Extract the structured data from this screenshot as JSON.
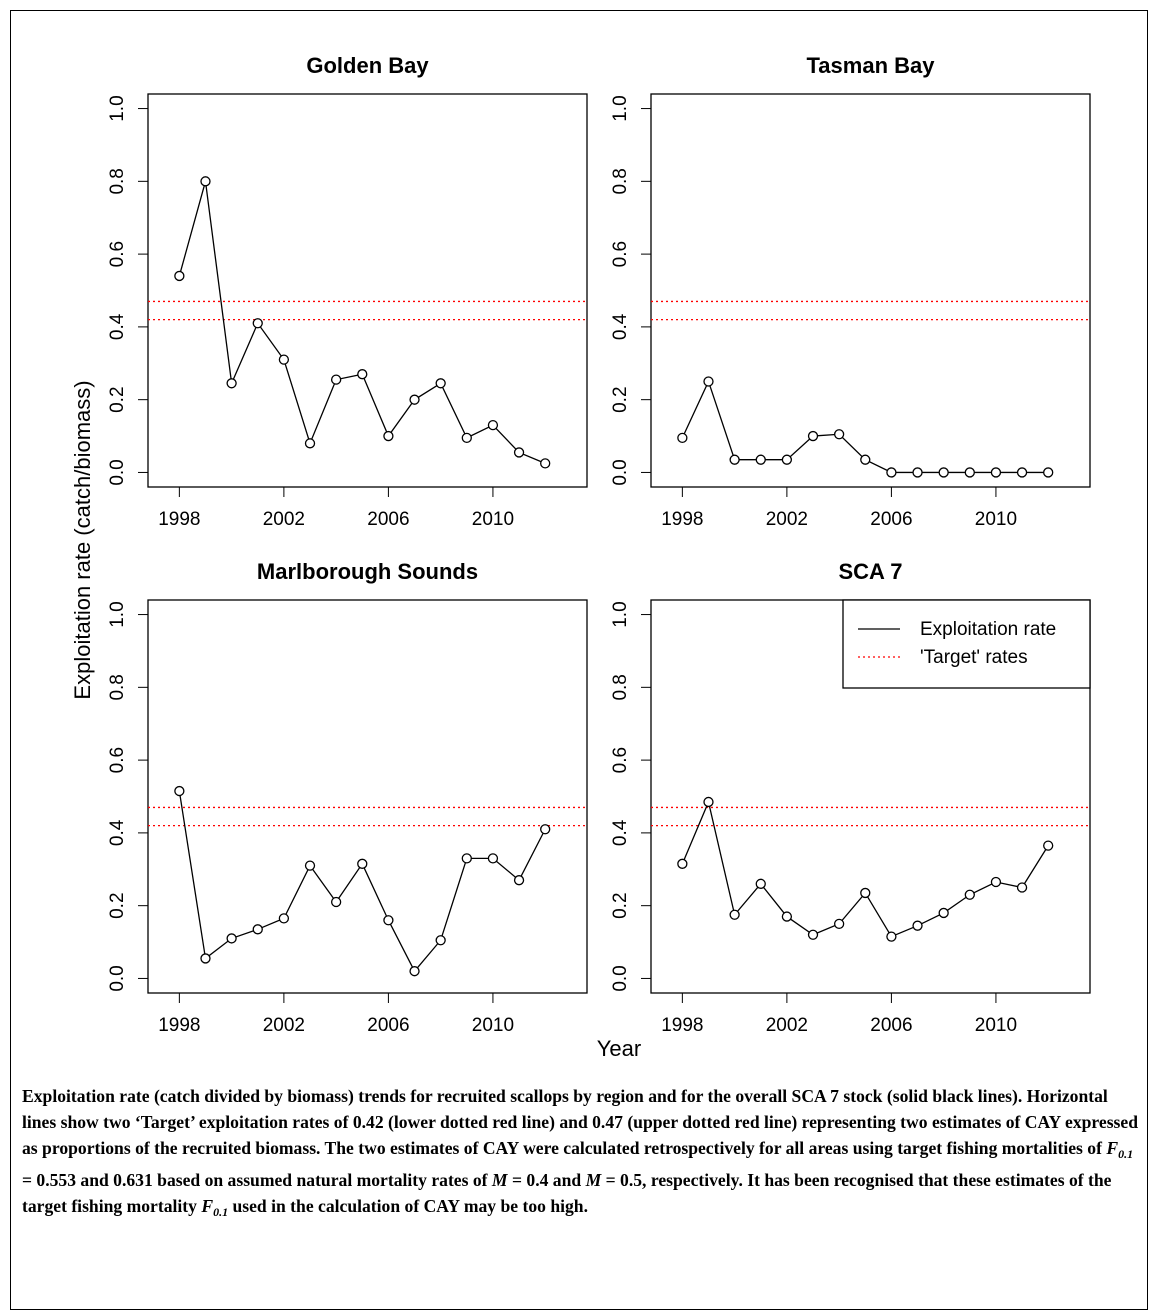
{
  "chart_data": [
    {
      "type": "line",
      "title": "Golden Bay",
      "x": [
        1998,
        1999,
        2000,
        2001,
        2002,
        2003,
        2004,
        2005,
        2006,
        2007,
        2008,
        2009,
        2010,
        2011,
        2012
      ],
      "series": [
        {
          "name": "Exploitation rate",
          "color": "#000000",
          "values": [
            0.54,
            0.8,
            0.245,
            0.41,
            0.31,
            0.08,
            0.255,
            0.27,
            0.1,
            0.2,
            0.245,
            0.095,
            0.13,
            0.055,
            0.025
          ]
        }
      ],
      "reference_lines": {
        "name": "'Target' rates",
        "color": "#ff0000",
        "values": [
          0.42,
          0.47
        ]
      },
      "xlim": [
        1996.8,
        2013.6
      ],
      "xticks": [
        1998,
        2002,
        2006,
        2010
      ],
      "ylim": [
        -0.04,
        1.04
      ],
      "yticks": [
        {
          "value": 0,
          "label": "0.0"
        },
        0.2,
        0.4,
        0.6,
        0.8,
        {
          "value": 1,
          "label": "1.0"
        }
      ]
    },
    {
      "type": "line",
      "title": "Tasman Bay",
      "x": [
        1998,
        1999,
        2000,
        2001,
        2002,
        2003,
        2004,
        2005,
        2006,
        2007,
        2008,
        2009,
        2010,
        2011,
        2012
      ],
      "series": [
        {
          "name": "Exploitation rate",
          "color": "#000000",
          "values": [
            0.095,
            0.25,
            0.035,
            0.035,
            0.035,
            0.1,
            0.105,
            0.035,
            0,
            0,
            0,
            0,
            0,
            0,
            0
          ]
        }
      ],
      "reference_lines": {
        "name": "'Target' rates",
        "color": "#ff0000",
        "values": [
          0.42,
          0.47
        ]
      },
      "xlim": [
        1996.8,
        2013.6
      ],
      "xticks": [
        1998,
        2002,
        2006,
        2010
      ],
      "ylim": [
        -0.04,
        1.04
      ],
      "yticks": [
        {
          "value": 0,
          "label": "0.0"
        },
        0.2,
        0.4,
        0.6,
        0.8,
        {
          "value": 1,
          "label": "1.0"
        }
      ]
    },
    {
      "type": "line",
      "title": "Marlborough Sounds",
      "x": [
        1998,
        1999,
        2000,
        2001,
        2002,
        2003,
        2004,
        2005,
        2006,
        2007,
        2008,
        2009,
        2010,
        2011,
        2012
      ],
      "series": [
        {
          "name": "Exploitation rate",
          "color": "#000000",
          "values": [
            0.515,
            0.055,
            0.11,
            0.135,
            0.165,
            0.31,
            0.21,
            0.315,
            0.16,
            0.02,
            0.105,
            0.33,
            0.33,
            0.27,
            0.41
          ]
        }
      ],
      "reference_lines": {
        "name": "'Target' rates",
        "color": "#ff0000",
        "values": [
          0.42,
          0.47
        ]
      },
      "xlim": [
        1996.8,
        2013.6
      ],
      "xticks": [
        1998,
        2002,
        2006,
        2010
      ],
      "ylim": [
        -0.04,
        1.04
      ],
      "yticks": [
        {
          "value": 0,
          "label": "0.0"
        },
        0.2,
        0.4,
        0.6,
        0.8,
        {
          "value": 1,
          "label": "1.0"
        }
      ]
    },
    {
      "type": "line",
      "title": "SCA 7",
      "x": [
        1998,
        1999,
        2000,
        2001,
        2002,
        2003,
        2004,
        2005,
        2006,
        2007,
        2008,
        2009,
        2010,
        2011,
        2012
      ],
      "series": [
        {
          "name": "Exploitation rate",
          "color": "#000000",
          "values": [
            0.315,
            0.485,
            0.175,
            0.26,
            0.17,
            0.12,
            0.15,
            0.235,
            0.115,
            0.145,
            0.18,
            0.23,
            0.265,
            0.25,
            0.365
          ]
        }
      ],
      "reference_lines": {
        "name": "'Target' rates",
        "color": "#ff0000",
        "values": [
          0.42,
          0.47
        ]
      },
      "xlim": [
        1996.8,
        2013.6
      ],
      "xticks": [
        1998,
        2002,
        2006,
        2010
      ],
      "ylim": [
        -0.04,
        1.04
      ],
      "yticks": [
        {
          "value": 0,
          "label": "0.0"
        },
        0.2,
        0.4,
        0.6,
        0.8,
        {
          "value": 1,
          "label": "1.0"
        }
      ],
      "legend": "top-right"
    }
  ],
  "y_label": "Exploitation rate (catch/biomass)",
  "x_label": "Year",
  "caption": [
    {
      "text": "Exploitation rate (catch divided by biomass) trends for recruited scallops by region and for the overall SCA 7 stock (solid black lines). Horizontal lines show two ‘Target’ exploitation rates of 0.42 (lower dotted red line) and 0.47 (upper dotted red line) representing two estimates of CAY expressed as proportions of the recruited biomass. The two estimates of CAY were calculated retrospectively for all areas using target fishing mortalities of ",
      "format": "plain"
    },
    {
      "text": "F",
      "format": "italic"
    },
    {
      "text": "0.1",
      "format": "subscript"
    },
    {
      "text": " = 0.553 and 0.631 based on assumed natural mortality rates of ",
      "format": "plain"
    },
    {
      "text": "M",
      "format": "italic"
    },
    {
      "text": " = 0.4 and ",
      "format": "plain"
    },
    {
      "text": "M",
      "format": "italic"
    },
    {
      "text": " = 0.5, respectively. It has been recognised that these estimates of the target fishing mortality ",
      "format": "plain"
    },
    {
      "text": "F",
      "format": "italic"
    },
    {
      "text": "0.1",
      "format": "subscript"
    },
    {
      "text": " used in the calculation of CAY may be too high.",
      "format": "plain"
    }
  ]
}
